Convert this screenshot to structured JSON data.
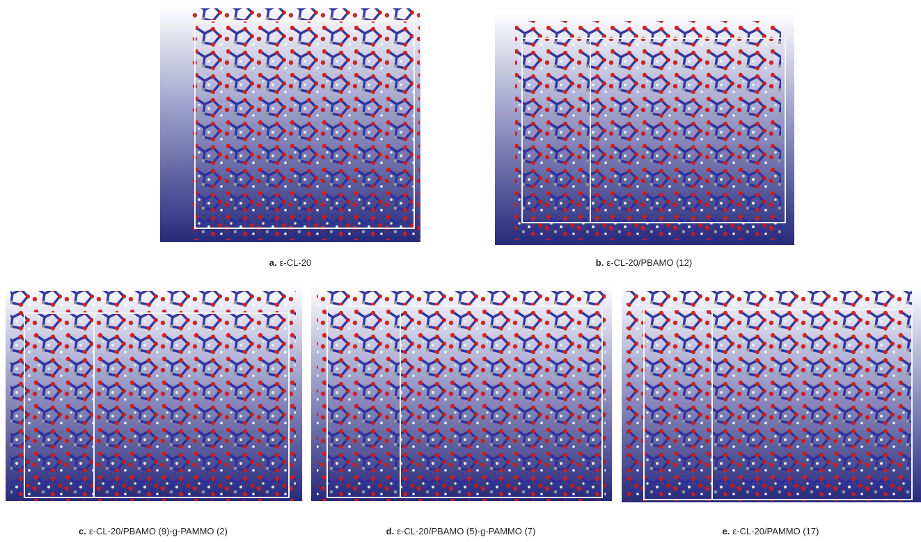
{
  "panels": [
    {
      "label": "a.",
      "caption": "ε-CL-20"
    },
    {
      "label": "b.",
      "caption": "ε-CL-20/PBAMO (12)"
    },
    {
      "label": "c.",
      "caption": "ε-CL-20/PBAMO (9)-g-PAMMO (2)"
    },
    {
      "label": "d.",
      "caption": "ε-CL-20/PBAMO (5)-g-PAMMO (7)"
    },
    {
      "label": "e.",
      "caption": "ε-CL-20/PAMMO (17)"
    }
  ]
}
